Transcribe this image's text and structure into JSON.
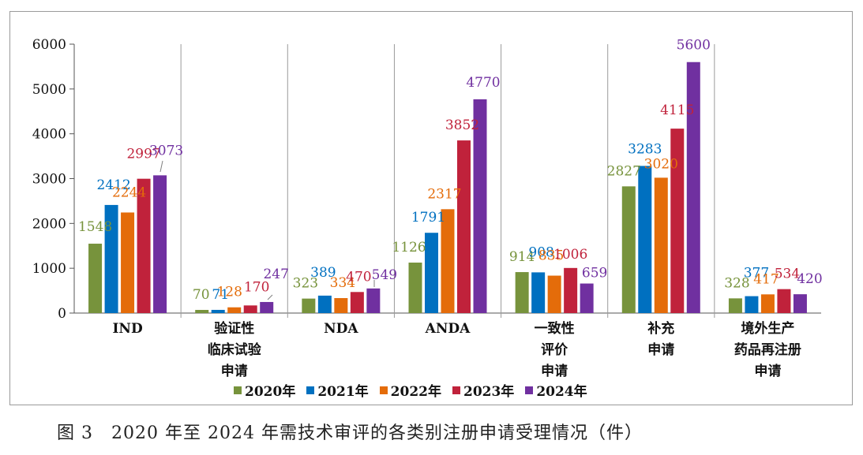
{
  "chart_data": {
    "type": "bar",
    "title": "",
    "xlabel": "",
    "ylabel": "",
    "ylim": [
      0,
      6000
    ],
    "yticks": [
      0,
      1000,
      2000,
      3000,
      4000,
      5000,
      6000
    ],
    "categories": [
      [
        "IND"
      ],
      [
        "验证性",
        "临床试验",
        "申请"
      ],
      [
        "NDA"
      ],
      [
        "ANDA"
      ],
      [
        "一致性",
        "评价",
        "申请"
      ],
      [
        "补充",
        "申请"
      ],
      [
        "境外生产",
        "药品再注册",
        "申请"
      ]
    ],
    "series": [
      {
        "name": "2020年",
        "color": "#77933c",
        "values": [
          1548,
          70,
          323,
          1126,
          914,
          2827,
          328
        ]
      },
      {
        "name": "2021年",
        "color": "#0070c0",
        "values": [
          2412,
          71,
          389,
          1791,
          908,
          3283,
          377
        ]
      },
      {
        "name": "2022年",
        "color": "#e46c0a",
        "values": [
          2244,
          128,
          334,
          2317,
          835,
          3020,
          417
        ]
      },
      {
        "name": "2023年",
        "color": "#c0223b",
        "values": [
          2997,
          170,
          470,
          3852,
          1006,
          4115,
          534
        ]
      },
      {
        "name": "2024年",
        "color": "#7030a0",
        "values": [
          3073,
          247,
          549,
          4770,
          659,
          5600,
          420
        ]
      }
    ]
  },
  "caption": "图 3　2020 年至 2024 年需技术审评的各类别注册申请受理情况（件）"
}
